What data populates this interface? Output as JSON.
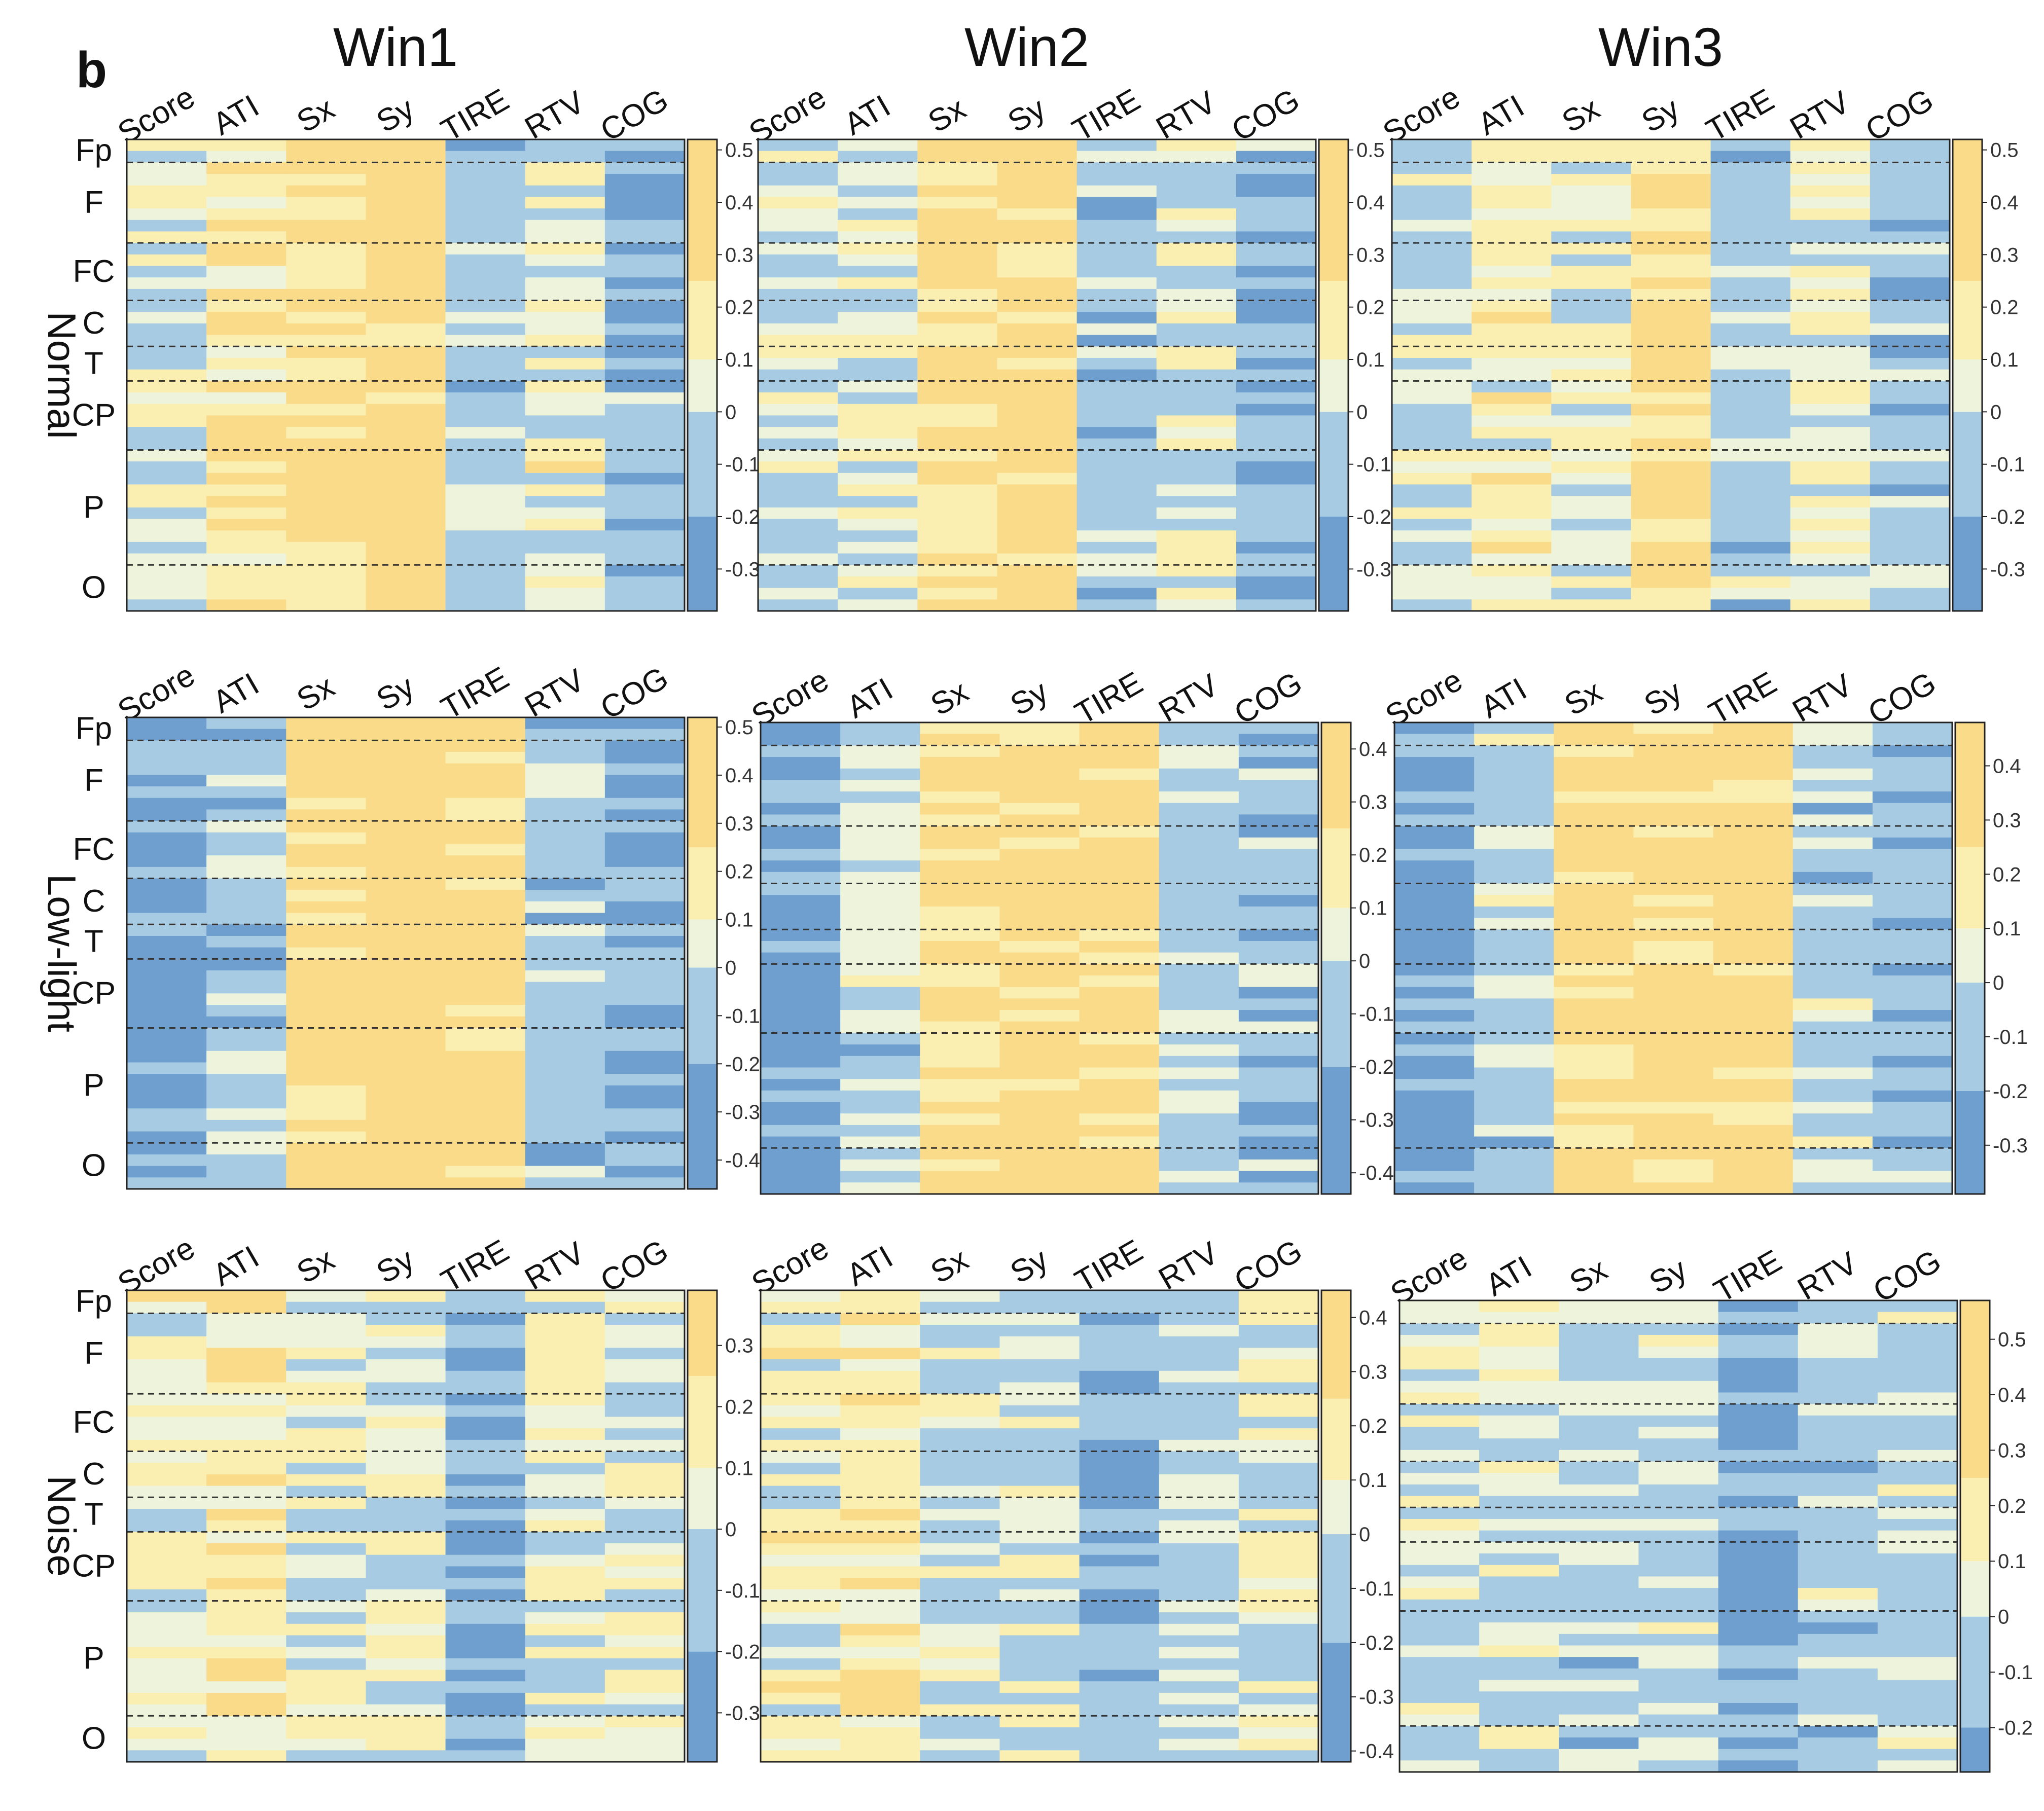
{
  "panel_letter": "b",
  "colors": {
    "blue_dark": "#6e9fcf",
    "blue_mid": "#a7cbe3",
    "pale": "#eef4dc",
    "yellow_light": "#faefb0",
    "yellow": "#fadb8a",
    "divider": "#333333"
  },
  "chart_data": {
    "type": "heatmap",
    "title": "",
    "windows": [
      "Win1",
      "Win2",
      "Win3"
    ],
    "conditions": [
      "Normal",
      "Low-light",
      "Noise"
    ],
    "columns": [
      "Score",
      "ATI",
      "Sx",
      "Sy",
      "TIRE",
      "RTV",
      "COG"
    ],
    "region_labels": [
      "Fp",
      "F",
      "FC",
      "C",
      "T",
      "CP",
      "P",
      "O"
    ],
    "region_channel_counts": [
      2,
      7,
      5,
      4,
      3,
      6,
      10,
      4
    ],
    "n_channels": 41,
    "colorbar_ticks": {
      "Normal": [
        [
          0.5,
          0.4,
          0.3,
          0.2,
          0.1,
          0,
          -0.1,
          -0.2,
          -0.3
        ],
        [
          0.5,
          0.4,
          0.3,
          0.2,
          0.1,
          0,
          -0.1,
          -0.2,
          -0.3
        ],
        [
          0.5,
          0.4,
          0.3,
          0.2,
          0.1,
          0,
          -0.1,
          -0.2,
          -0.3
        ]
      ],
      "Low-light": [
        [
          0.5,
          0.4,
          0.3,
          0.2,
          0.1,
          0,
          -0.1,
          -0.2,
          -0.3,
          -0.4
        ],
        [
          0.4,
          0.3,
          0.2,
          0.1,
          0,
          -0.1,
          -0.2,
          -0.3,
          -0.4
        ],
        [
          0.4,
          0.3,
          0.2,
          0.1,
          0,
          -0.1,
          -0.2,
          -0.3
        ]
      ],
      "Noise": [
        [
          0.3,
          0.2,
          0.1,
          0,
          -0.1,
          -0.2,
          -0.3
        ],
        [
          0.4,
          0.3,
          0.2,
          0.1,
          0,
          -0.1,
          -0.2,
          -0.3,
          -0.4
        ],
        [
          0.5,
          0.4,
          0.3,
          0.2,
          0.1,
          0,
          -0.1,
          -0.2
        ]
      ]
    },
    "color_ranges": {
      "Normal": [
        [
          -0.38,
          0.52
        ],
        [
          -0.38,
          0.52
        ],
        [
          -0.38,
          0.52
        ]
      ],
      "Low-light": [
        [
          -0.46,
          0.52
        ],
        [
          -0.44,
          0.45
        ],
        [
          -0.39,
          0.48
        ]
      ],
      "Noise": [
        [
          -0.38,
          0.39
        ],
        [
          -0.42,
          0.45
        ],
        [
          -0.28,
          0.57
        ]
      ]
    },
    "column_profiles": {
      "Normal": [
        [
          0.05,
          0.2,
          0.3,
          0.38,
          -0.1,
          0.1,
          -0.15
        ],
        [
          0.0,
          0.05,
          0.3,
          0.35,
          -0.1,
          0.05,
          -0.15
        ],
        [
          0.0,
          0.15,
          0.1,
          0.3,
          -0.05,
          0.05,
          -0.1
        ]
      ],
      "Low-light": [
        [
          -0.25,
          -0.1,
          0.3,
          0.38,
          0.35,
          -0.1,
          -0.15
        ],
        [
          -0.25,
          -0.05,
          0.3,
          0.35,
          0.33,
          -0.05,
          -0.15
        ],
        [
          -0.25,
          -0.05,
          0.28,
          0.35,
          0.35,
          -0.05,
          -0.15
        ]
      ],
      "Noise": [
        [
          0.1,
          0.2,
          0.05,
          0.05,
          -0.25,
          0.05,
          0.05
        ],
        [
          0.1,
          0.2,
          0.0,
          0.0,
          -0.2,
          -0.05,
          0.05
        ],
        [
          0.0,
          0.05,
          -0.05,
          -0.05,
          -0.25,
          -0.05,
          -0.05
        ]
      ]
    },
    "values_note": "Per-channel correlation values; each cell = column profile plus channel variation within the colour range."
  }
}
